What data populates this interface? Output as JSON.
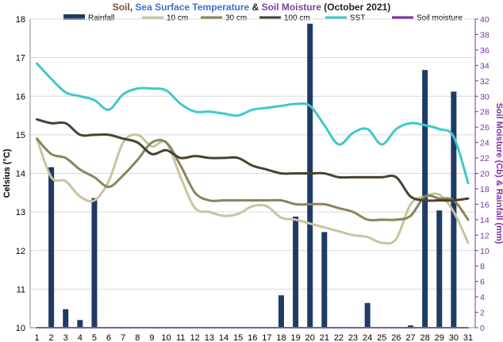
{
  "chart_data": {
    "type": "bar+line",
    "title_parts": [
      {
        "text": "Soil",
        "color": "#7a4a3a"
      },
      {
        "text": ", ",
        "color": "#222222"
      },
      {
        "text": "Sea Surface Temperature",
        "color": "#3d6fd1"
      },
      {
        "text": " & ",
        "color": "#222222"
      },
      {
        "text": "Soil Moisture",
        "color": "#7b3fa0"
      },
      {
        "text": " (October 2021)",
        "color": "#222222"
      }
    ],
    "ylabel_left": "Celsius (°C)",
    "ylabel_right": "Soil Moisture (Cb) & Rainfall (mm)",
    "ylim_left": [
      10,
      18
    ],
    "ylim_right": [
      0,
      40
    ],
    "yticks_left": [
      "10",
      "11",
      "12",
      "13",
      "14",
      "15",
      "16",
      "17",
      "18"
    ],
    "yticks_right": [
      "0",
      "2",
      "4",
      "6",
      "8",
      "10",
      "12",
      "14",
      "16",
      "18",
      "20",
      "22",
      "24",
      "26",
      "28",
      "30",
      "32",
      "34",
      "36",
      "38",
      "40"
    ],
    "x": [
      "1",
      "2",
      "3",
      "4",
      "5",
      "6",
      "7",
      "8",
      "9",
      "10",
      "11",
      "12",
      "13",
      "14",
      "15",
      "16",
      "17",
      "18",
      "19",
      "20",
      "21",
      "22",
      "23",
      "24",
      "25",
      "26",
      "27",
      "28",
      "29",
      "30",
      "31"
    ],
    "grid": "horizontal",
    "legend_placement": "top",
    "bars": {
      "name": "Rainfall",
      "axis": "right",
      "color": "#1f3b63",
      "values": [
        0,
        20.8,
        2.4,
        1,
        16.8,
        0,
        0,
        0,
        0,
        0,
        0,
        0,
        0,
        0,
        0,
        0,
        0,
        4.2,
        14.4,
        39.4,
        12.4,
        0,
        0,
        3.2,
        0,
        0,
        0.3,
        33.4,
        15.2,
        30.6,
        0
      ]
    },
    "series": [
      {
        "name": "10 cm",
        "axis": "left",
        "color": "#c8c4a0",
        "values": [
          14.9,
          13.9,
          13.8,
          13.4,
          13.3,
          13.8,
          14.8,
          15.0,
          14.7,
          14.8,
          13.9,
          13.1,
          13.0,
          12.9,
          12.95,
          13.15,
          13.15,
          12.85,
          12.8,
          12.7,
          12.6,
          12.5,
          12.4,
          12.35,
          12.2,
          12.3,
          13.2,
          13.4,
          13.45,
          13.0,
          12.2
        ]
      },
      {
        "name": "30 cm",
        "axis": "left",
        "color": "#8b8458",
        "values": [
          14.9,
          14.5,
          14.4,
          14.1,
          13.9,
          13.65,
          13.95,
          14.35,
          14.8,
          14.8,
          14.2,
          13.5,
          13.3,
          13.3,
          13.3,
          13.3,
          13.3,
          13.3,
          13.2,
          13.2,
          13.2,
          13.1,
          13.0,
          12.8,
          12.8,
          12.8,
          12.9,
          13.4,
          13.35,
          13.3,
          12.8
        ]
      },
      {
        "name": "100 cm",
        "axis": "left",
        "color": "#4a4232",
        "values": [
          15.4,
          15.3,
          15.3,
          15.0,
          15.0,
          15.0,
          14.9,
          14.8,
          14.5,
          14.6,
          14.4,
          14.45,
          14.4,
          14.4,
          14.4,
          14.2,
          14.1,
          14.0,
          14.0,
          14.0,
          14.0,
          13.9,
          13.9,
          13.9,
          13.9,
          13.9,
          13.4,
          13.3,
          13.3,
          13.3,
          13.35
        ]
      },
      {
        "name": "SST",
        "axis": "left",
        "color": "#40c8c8",
        "values": [
          16.85,
          16.45,
          16.1,
          16.0,
          15.9,
          15.65,
          16.05,
          16.2,
          16.2,
          16.15,
          15.8,
          15.6,
          15.6,
          15.55,
          15.5,
          15.65,
          15.7,
          15.75,
          15.8,
          15.75,
          15.25,
          14.75,
          15.05,
          15.15,
          14.75,
          15.15,
          15.3,
          15.25,
          15.15,
          14.95,
          13.75
        ]
      },
      {
        "name": "Soil moisture",
        "axis": "right",
        "color": "#7b2fa0",
        "values": [
          0,
          0,
          0,
          0,
          0,
          0,
          0,
          0,
          0,
          0,
          0,
          0,
          0,
          0,
          0,
          0,
          0,
          0,
          0,
          0,
          0,
          0,
          0,
          0,
          0,
          0,
          0,
          0,
          0,
          0,
          0
        ]
      }
    ]
  }
}
